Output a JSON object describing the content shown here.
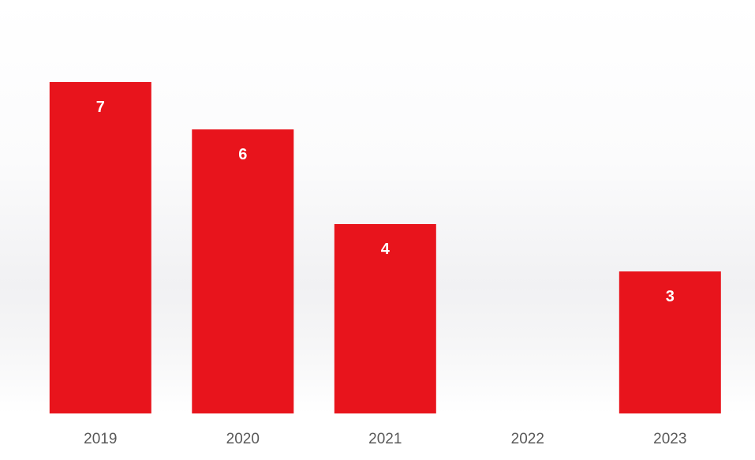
{
  "chart_data": {
    "type": "bar",
    "categories": [
      "2019",
      "2020",
      "2021",
      "2022",
      "2023"
    ],
    "values": [
      7,
      6,
      4,
      null,
      3
    ],
    "grid": false,
    "legend": "none",
    "data_labels": "inside-top",
    "colors": {
      "bar": "#e8141c",
      "data_label": "#ffffff",
      "tick_label": "#595959"
    }
  }
}
